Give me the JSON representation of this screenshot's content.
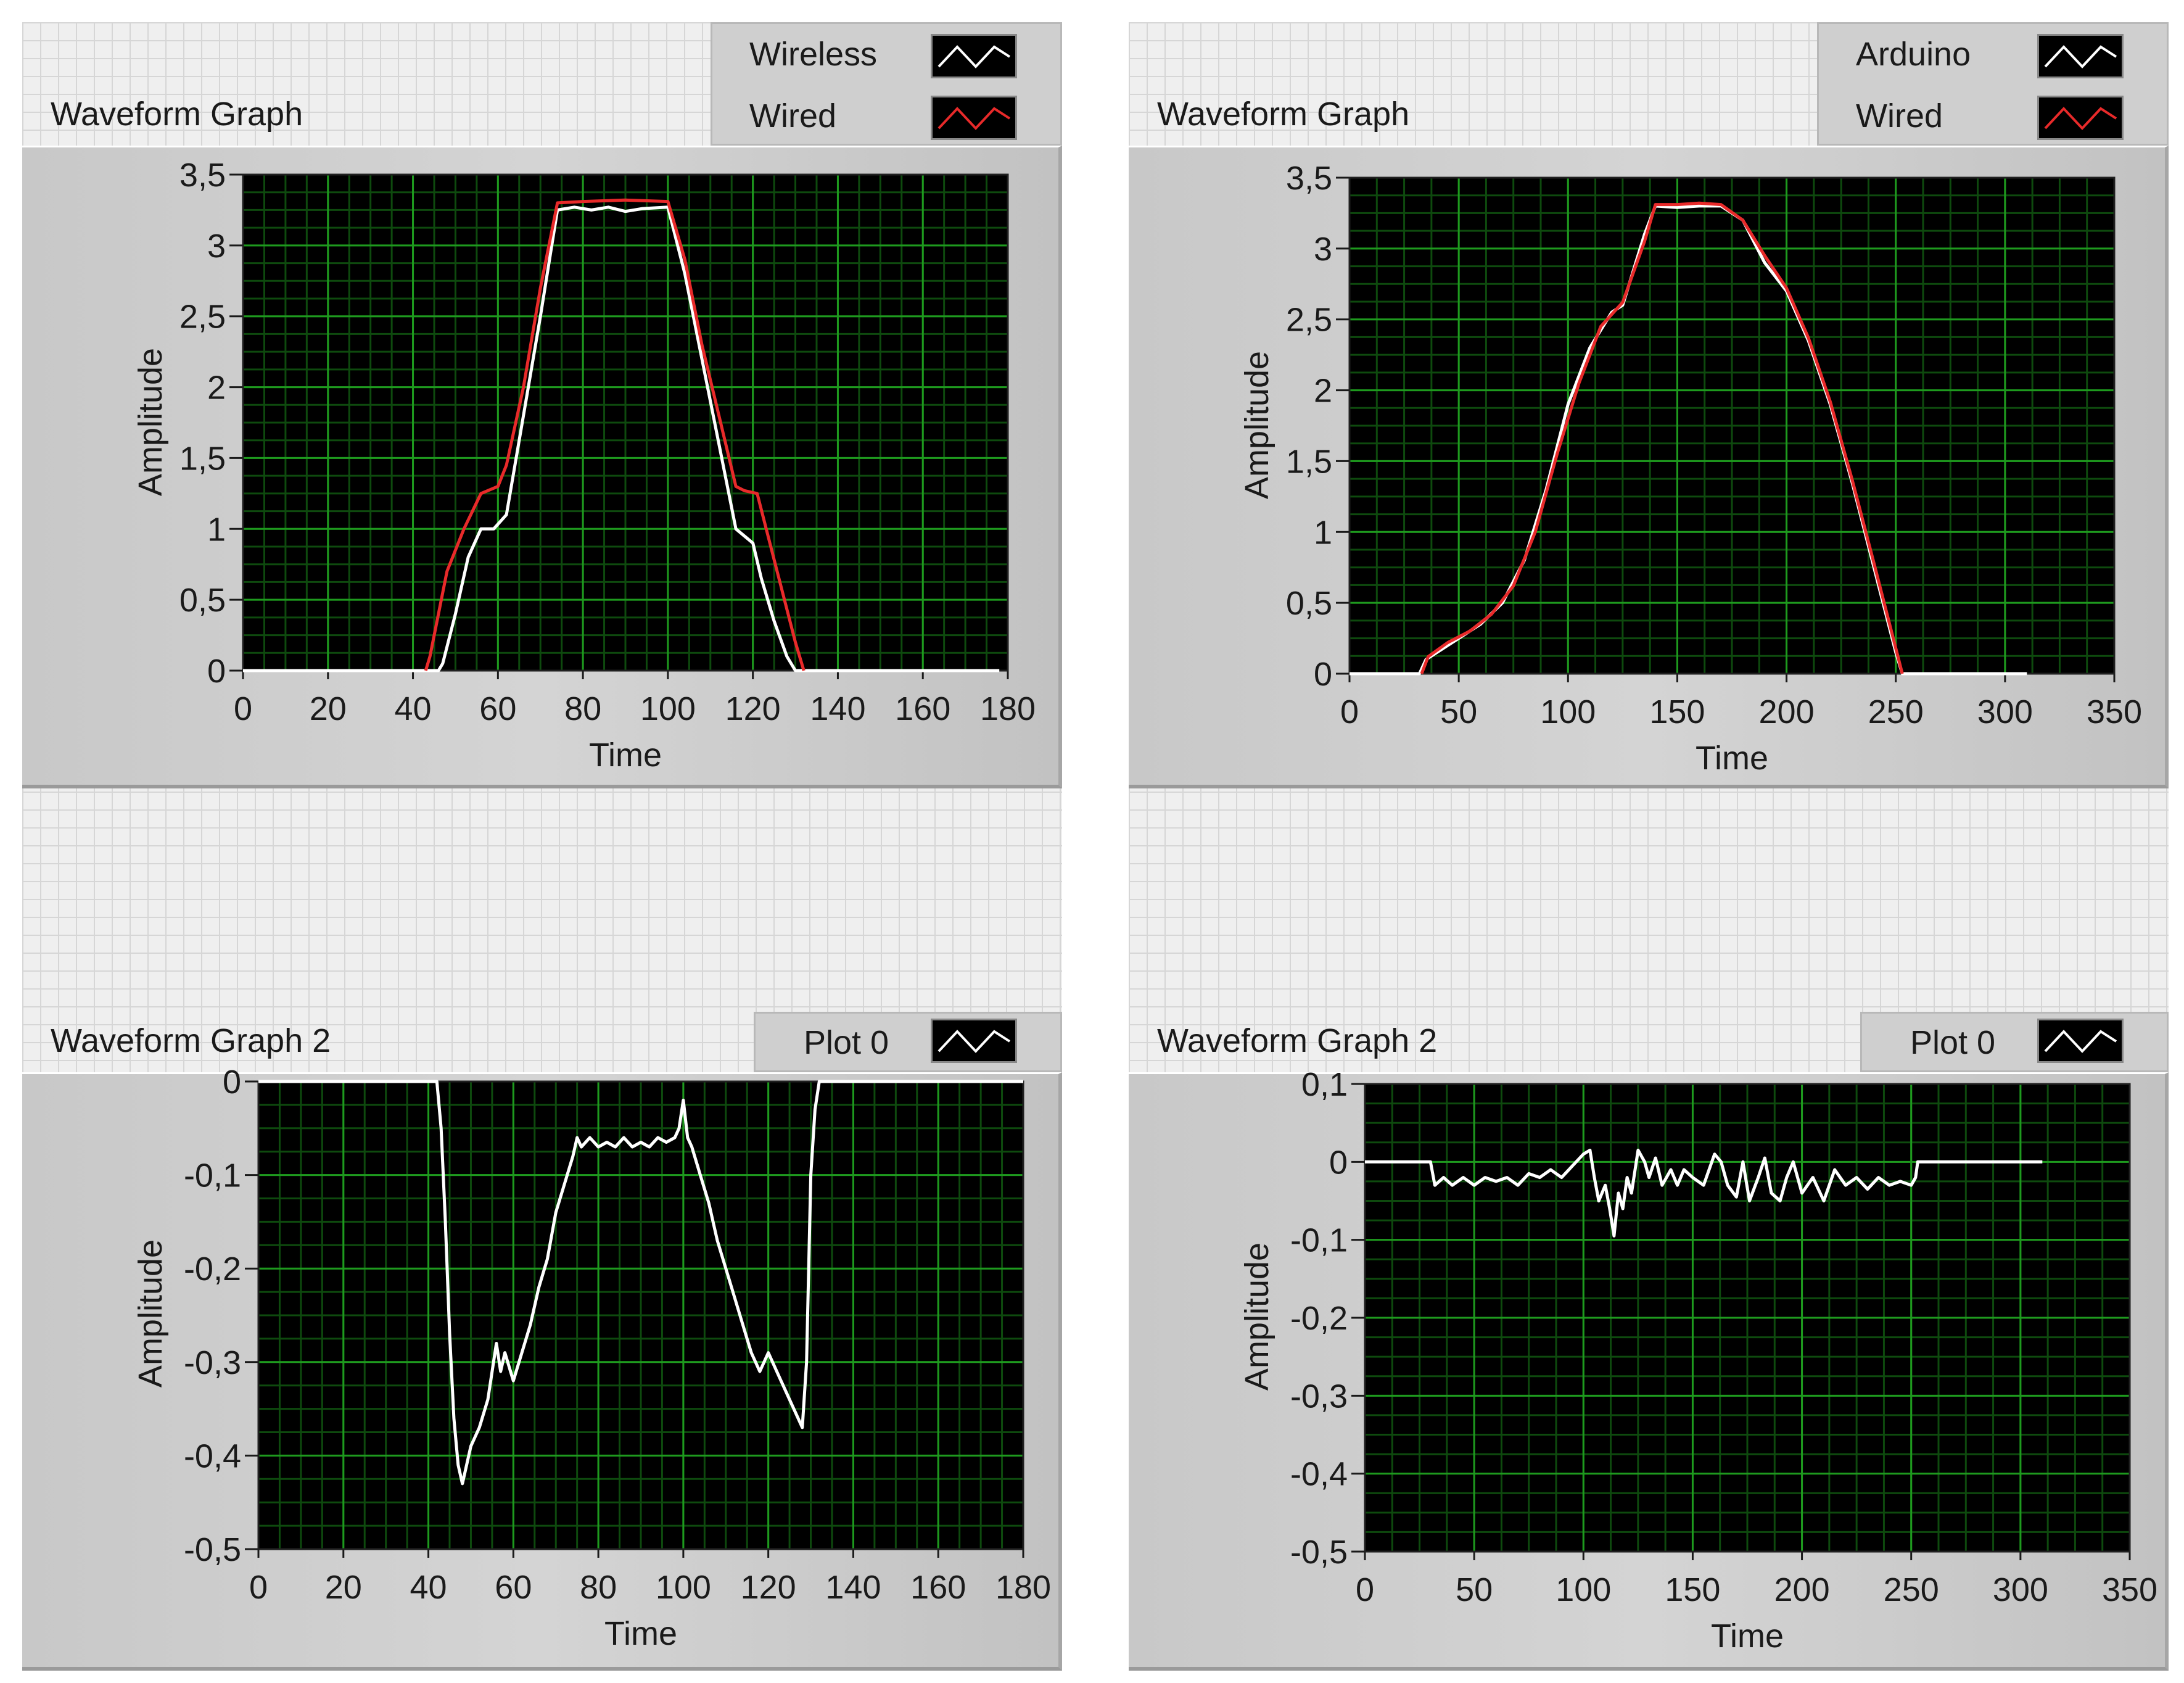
{
  "colors": {
    "plot_bg": "#000000",
    "grid_major": "#1e9a1e",
    "grid_minor": "#0e4a0e",
    "series_white": "#ffffff",
    "series_red": "#e82a2a"
  },
  "panels": {
    "tl": {
      "caption": "Waveform Graph",
      "legend": [
        {
          "name": "Wireless",
          "color": "#ffffff",
          "icon": "line-sample-icon"
        },
        {
          "name": "Wired",
          "color": "#e82a2a",
          "icon": "line-sample-icon"
        }
      ]
    },
    "tr": {
      "caption": "Waveform Graph",
      "legend": [
        {
          "name": "Arduino",
          "color": "#ffffff",
          "icon": "line-sample-icon"
        },
        {
          "name": "Wired",
          "color": "#e82a2a",
          "icon": "line-sample-icon"
        }
      ]
    },
    "bl": {
      "caption": "Waveform Graph 2",
      "legend": [
        {
          "name": "Plot 0",
          "color": "#ffffff",
          "icon": "line-sample-icon"
        }
      ]
    },
    "br": {
      "caption": "Waveform Graph 2",
      "legend": [
        {
          "name": "Plot 0",
          "color": "#ffffff",
          "icon": "line-sample-icon"
        }
      ]
    }
  },
  "chart_data": [
    {
      "id": "tl",
      "type": "line",
      "title": "Waveform Graph",
      "xlabel": "Time",
      "ylabel": "Amplitude",
      "xlim": [
        0,
        180
      ],
      "ylim": [
        0,
        3.5
      ],
      "xticks": [
        0,
        20,
        40,
        60,
        80,
        100,
        120,
        140,
        160,
        180
      ],
      "xtick_labels": [
        "0",
        "20",
        "40",
        "60",
        "80",
        "100",
        "120",
        "140",
        "160",
        "180"
      ],
      "yticks": [
        0,
        0.5,
        1,
        1.5,
        2,
        2.5,
        3,
        3.5
      ],
      "ytick_labels": [
        "0",
        "0,5",
        "1",
        "1,5",
        "2",
        "2,5",
        "3",
        "3,5"
      ],
      "grid": true,
      "legend": "top-right",
      "series": [
        {
          "name": "Wireless",
          "color": "#ffffff",
          "x": [
            0,
            46,
            47,
            50,
            53,
            56,
            59,
            62,
            66,
            70,
            74,
            78,
            82,
            86,
            90,
            94,
            100,
            104,
            108,
            112,
            116,
            118,
            120,
            122,
            125,
            128,
            130,
            132,
            135,
            140,
            150,
            160,
            170,
            178
          ],
          "y": [
            0,
            0,
            0.05,
            0.4,
            0.8,
            1.0,
            1.0,
            1.1,
            1.8,
            2.5,
            3.25,
            3.27,
            3.25,
            3.27,
            3.24,
            3.26,
            3.27,
            2.8,
            2.2,
            1.6,
            1.0,
            0.95,
            0.9,
            0.65,
            0.35,
            0.1,
            0,
            0,
            0,
            0,
            0,
            0,
            0,
            0
          ]
        },
        {
          "name": "Wired",
          "color": "#e82a2a",
          "x": [
            43,
            44,
            48,
            52,
            56,
            60,
            62,
            66,
            70,
            74,
            80,
            90,
            100,
            104,
            108,
            112,
            116,
            118,
            121,
            124,
            127,
            130,
            132
          ],
          "y": [
            0,
            0.1,
            0.7,
            1.0,
            1.25,
            1.3,
            1.45,
            2.0,
            2.7,
            3.3,
            3.31,
            3.32,
            3.31,
            2.9,
            2.3,
            1.8,
            1.3,
            1.27,
            1.25,
            0.9,
            0.55,
            0.2,
            0
          ]
        }
      ]
    },
    {
      "id": "tr",
      "type": "line",
      "title": "Waveform Graph",
      "xlabel": "Time",
      "ylabel": "Amplitude",
      "xlim": [
        0,
        350
      ],
      "ylim": [
        0,
        3.5
      ],
      "xticks": [
        0,
        50,
        100,
        150,
        200,
        250,
        300,
        350
      ],
      "xtick_labels": [
        "0",
        "50",
        "100",
        "150",
        "200",
        "250",
        "300",
        "350"
      ],
      "yticks": [
        0,
        0.5,
        1,
        1.5,
        2,
        2.5,
        3,
        3.5
      ],
      "ytick_labels": [
        "0",
        "0,5",
        "1",
        "1,5",
        "2",
        "2,5",
        "3",
        "3,5"
      ],
      "grid": true,
      "legend": "top-right",
      "series": [
        {
          "name": "Arduino",
          "color": "#ffffff",
          "x": [
            0,
            32,
            35,
            40,
            50,
            60,
            70,
            80,
            90,
            100,
            110,
            120,
            125,
            130,
            135,
            140,
            150,
            160,
            170,
            180,
            190,
            200,
            210,
            220,
            230,
            240,
            250,
            253,
            260,
            280,
            300,
            310
          ],
          "y": [
            0,
            0,
            0.1,
            0.15,
            0.25,
            0.35,
            0.5,
            0.8,
            1.3,
            1.9,
            2.3,
            2.55,
            2.6,
            2.85,
            3.1,
            3.3,
            3.29,
            3.3,
            3.3,
            3.2,
            2.9,
            2.7,
            2.35,
            1.9,
            1.35,
            0.75,
            0.15,
            0,
            0,
            0,
            0,
            0
          ]
        },
        {
          "name": "Wired",
          "color": "#e82a2a",
          "x": [
            33,
            36,
            45,
            55,
            65,
            75,
            85,
            95,
            105,
            115,
            125,
            135,
            140,
            150,
            160,
            170,
            180,
            190,
            200,
            210,
            220,
            230,
            240,
            250,
            253
          ],
          "y": [
            0,
            0.12,
            0.22,
            0.3,
            0.42,
            0.62,
            1.0,
            1.55,
            2.05,
            2.45,
            2.62,
            3.05,
            3.31,
            3.31,
            3.32,
            3.31,
            3.2,
            2.95,
            2.72,
            2.37,
            1.92,
            1.37,
            0.78,
            0.18,
            0
          ]
        }
      ]
    },
    {
      "id": "bl",
      "type": "line",
      "title": "Waveform Graph 2",
      "xlabel": "Time",
      "ylabel": "Amplitude",
      "xlim": [
        0,
        180
      ],
      "ylim": [
        -0.5,
        0
      ],
      "xticks": [
        0,
        20,
        40,
        60,
        80,
        100,
        120,
        140,
        160,
        180
      ],
      "xtick_labels": [
        "0",
        "20",
        "40",
        "60",
        "80",
        "100",
        "120",
        "140",
        "160",
        "180"
      ],
      "yticks": [
        0,
        -0.1,
        -0.2,
        -0.3,
        -0.4,
        -0.5
      ],
      "ytick_labels": [
        "0",
        "-0,1",
        "-0,2",
        "-0,3",
        "-0,4",
        "-0,5"
      ],
      "grid": true,
      "legend": "top-right",
      "series": [
        {
          "name": "Plot 0",
          "color": "#ffffff",
          "x": [
            0,
            42,
            43,
            44,
            45,
            46,
            47,
            48,
            50,
            52,
            54,
            56,
            57,
            58,
            60,
            62,
            64,
            66,
            68,
            70,
            72,
            74,
            75,
            76,
            78,
            80,
            82,
            84,
            86,
            88,
            90,
            92,
            94,
            96,
            98,
            99,
            100,
            101,
            102,
            104,
            106,
            108,
            110,
            112,
            114,
            116,
            118,
            120,
            122,
            124,
            126,
            128,
            129,
            130,
            131,
            132,
            140,
            160,
            180
          ],
          "y": [
            0,
            0,
            -0.05,
            -0.15,
            -0.27,
            -0.36,
            -0.41,
            -0.43,
            -0.39,
            -0.37,
            -0.34,
            -0.28,
            -0.31,
            -0.29,
            -0.32,
            -0.29,
            -0.26,
            -0.22,
            -0.19,
            -0.14,
            -0.11,
            -0.08,
            -0.06,
            -0.07,
            -0.06,
            -0.07,
            -0.065,
            -0.07,
            -0.06,
            -0.07,
            -0.065,
            -0.07,
            -0.06,
            -0.065,
            -0.06,
            -0.05,
            -0.02,
            -0.06,
            -0.07,
            -0.1,
            -0.13,
            -0.17,
            -0.2,
            -0.23,
            -0.26,
            -0.29,
            -0.31,
            -0.29,
            -0.31,
            -0.33,
            -0.35,
            -0.37,
            -0.3,
            -0.1,
            -0.03,
            0,
            0,
            0,
            0
          ]
        }
      ]
    },
    {
      "id": "br",
      "type": "line",
      "title": "Waveform Graph 2",
      "xlabel": "Time",
      "ylabel": "Amplitude",
      "xlim": [
        0,
        350
      ],
      "ylim": [
        -0.5,
        0.1
      ],
      "xticks": [
        0,
        50,
        100,
        150,
        200,
        250,
        300,
        350
      ],
      "xtick_labels": [
        "0",
        "50",
        "100",
        "150",
        "200",
        "250",
        "300",
        "350"
      ],
      "yticks": [
        0.1,
        0,
        -0.1,
        -0.2,
        -0.3,
        -0.4,
        -0.5
      ],
      "ytick_labels": [
        "0,1",
        "0",
        "-0,1",
        "-0,2",
        "-0,3",
        "-0,4",
        "-0,5"
      ],
      "grid": true,
      "legend": "top-right",
      "series": [
        {
          "name": "Plot 0",
          "color": "#ffffff",
          "x": [
            0,
            30,
            32,
            36,
            40,
            45,
            50,
            55,
            60,
            65,
            70,
            75,
            80,
            85,
            90,
            95,
            100,
            103,
            105,
            107,
            110,
            112,
            114,
            116,
            118,
            120,
            122,
            125,
            128,
            130,
            133,
            136,
            140,
            143,
            146,
            150,
            155,
            160,
            163,
            166,
            170,
            173,
            176,
            180,
            183,
            186,
            190,
            193,
            196,
            200,
            205,
            210,
            215,
            220,
            225,
            230,
            235,
            240,
            245,
            250,
            252,
            253,
            260,
            280,
            300,
            310
          ],
          "y": [
            0,
            0,
            -0.03,
            -0.02,
            -0.03,
            -0.02,
            -0.03,
            -0.02,
            -0.025,
            -0.02,
            -0.03,
            -0.015,
            -0.02,
            -0.01,
            -0.02,
            -0.005,
            0.01,
            0.015,
            -0.02,
            -0.05,
            -0.03,
            -0.06,
            -0.095,
            -0.04,
            -0.06,
            -0.02,
            -0.04,
            0.015,
            0.0,
            -0.02,
            0.005,
            -0.03,
            -0.01,
            -0.03,
            -0.01,
            -0.02,
            -0.03,
            0.01,
            0.0,
            -0.03,
            -0.045,
            0.0,
            -0.05,
            -0.02,
            0.005,
            -0.04,
            -0.05,
            -0.02,
            0.0,
            -0.04,
            -0.02,
            -0.05,
            -0.01,
            -0.03,
            -0.02,
            -0.035,
            -0.02,
            -0.03,
            -0.025,
            -0.03,
            -0.02,
            0,
            0,
            0,
            0,
            0
          ]
        }
      ]
    }
  ]
}
